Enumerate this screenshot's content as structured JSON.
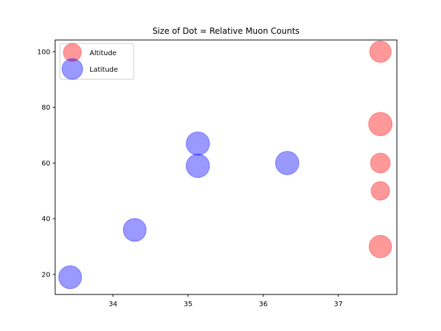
{
  "chart_data": {
    "type": "scatter",
    "title": "Size of Dot = Relative Muon Counts",
    "xlabel": "",
    "ylabel": "",
    "xlim": [
      33.23,
      37.78
    ],
    "ylim": [
      12.8,
      104.2
    ],
    "x_ticks": [
      34,
      35,
      36,
      37
    ],
    "y_ticks": [
      20,
      40,
      60,
      80,
      100
    ],
    "grid": false,
    "legend": "top-left",
    "series": [
      {
        "name": "Altitude",
        "color": "#ff0000",
        "alpha": 0.4,
        "points": [
          {
            "x": 37.56,
            "y": 100,
            "size": 1.0
          },
          {
            "x": 37.56,
            "y": 74,
            "size": 1.2
          },
          {
            "x": 37.56,
            "y": 60,
            "size": 0.85
          },
          {
            "x": 37.56,
            "y": 50,
            "size": 0.75
          },
          {
            "x": 37.56,
            "y": 30,
            "size": 1.1
          }
        ]
      },
      {
        "name": "Latitude",
        "color": "#0000ff",
        "alpha": 0.4,
        "points": [
          {
            "x": 35.13,
            "y": 67,
            "size": 1.2
          },
          {
            "x": 35.13,
            "y": 59,
            "size": 1.2
          },
          {
            "x": 36.32,
            "y": 60,
            "size": 1.2
          },
          {
            "x": 34.29,
            "y": 36,
            "size": 1.15
          },
          {
            "x": 33.43,
            "y": 19,
            "size": 1.15
          }
        ]
      }
    ]
  }
}
